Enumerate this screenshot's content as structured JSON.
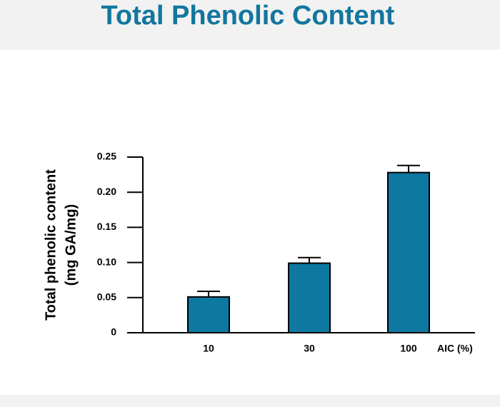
{
  "chart_data": {
    "type": "bar",
    "title": "Total Phenolic Content",
    "y_label": [
      "Total phenolic content",
      "(mg GA/mg)"
    ],
    "x_label": "AIC (%)",
    "categories": [
      "10",
      "30",
      "100"
    ],
    "values": [
      0.051,
      0.099,
      0.228
    ],
    "errors": [
      0.008,
      0.008,
      0.01
    ],
    "color": "#0e78a0",
    "ylim": [
      0,
      0.25
    ],
    "yticks": [
      0,
      0.05,
      {
        "value": 0.1,
        "label": "0.10"
      },
      0.15,
      {
        "value": 0.2,
        "label": "0.20"
      },
      0.25
    ],
    "grid": false
  }
}
